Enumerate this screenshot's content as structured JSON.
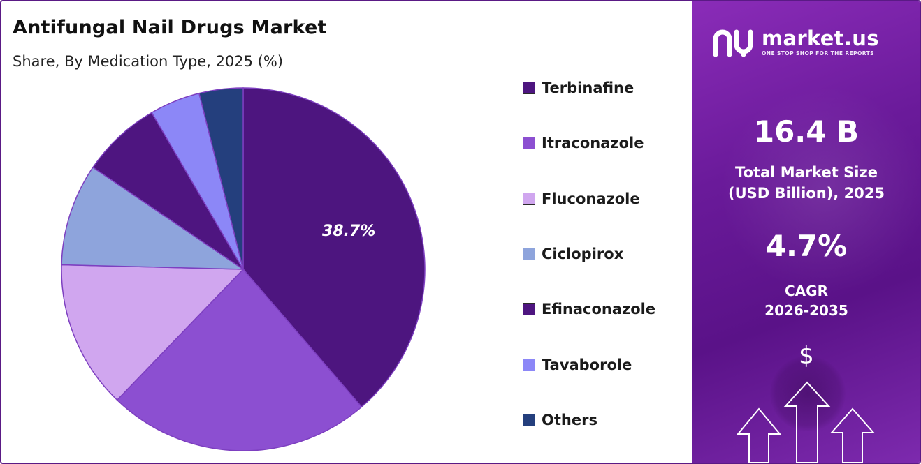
{
  "title": "Antifungal Nail Drugs Market",
  "subtitle": "Share, By Medication Type, 2025 (%)",
  "chart_data": {
    "type": "pie",
    "categories": [
      "Terbinafine",
      "Itraconazole",
      "Fluconazole",
      "Ciclopirox",
      "Efinaconazole",
      "Tavaborole",
      "Others"
    ],
    "values": [
      38.7,
      23.5,
      13.2,
      9.1,
      7.1,
      4.5,
      3.9
    ],
    "colors": [
      "#4d157f",
      "#8c4fd1",
      "#d0a6ef",
      "#8ea4dc",
      "#4e1580",
      "#8c87f7",
      "#243f7d"
    ],
    "data_labels": [
      "38.7%",
      "",
      "",
      "",
      "",
      "",
      ""
    ],
    "legend": "right"
  },
  "brand": {
    "name": "market.us",
    "tagline": "ONE STOP SHOP FOR THE REPORTS"
  },
  "stats": {
    "market_size_value": "16.4 B",
    "market_size_label_line1": "Total Market Size",
    "market_size_label_line2": "(USD Billion), 2025",
    "cagr_value": "4.7%",
    "cagr_label_line1": "CAGR",
    "cagr_label_line2": "2026-2035",
    "currency_symbol": "$"
  },
  "icons": [
    "market-us-logo-icon",
    "dollar-icon",
    "up-arrow-icon"
  ]
}
